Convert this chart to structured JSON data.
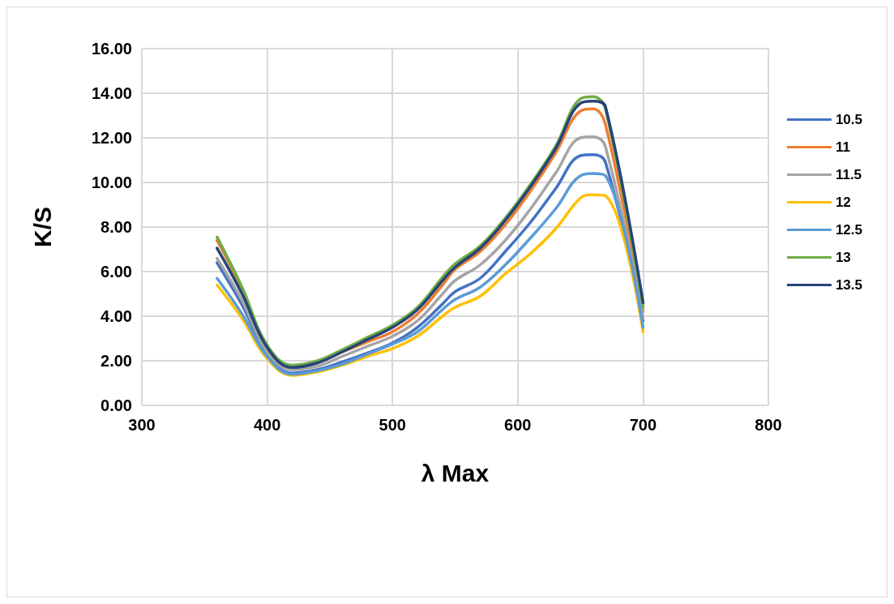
{
  "chart_data": {
    "type": "line",
    "xlabel": "λ Max",
    "ylabel": "K/S",
    "x": [
      360,
      380,
      400,
      420,
      440,
      460,
      480,
      500,
      520,
      540,
      550,
      570,
      590,
      610,
      630,
      650,
      660,
      670,
      700
    ],
    "series": [
      {
        "name": "10.5",
        "color": "#4472c4",
        "values": [
          6.4,
          4.5,
          2.3,
          1.45,
          1.6,
          1.95,
          2.35,
          2.8,
          3.5,
          4.55,
          5.1,
          5.7,
          6.9,
          8.2,
          9.7,
          11.2,
          11.25,
          10.9,
          3.8
        ]
      },
      {
        "name": "11",
        "color": "#ed7d31",
        "values": [
          7.4,
          5.2,
          2.6,
          1.75,
          1.95,
          2.4,
          2.85,
          3.3,
          4.1,
          5.4,
          6.1,
          6.9,
          8.1,
          9.6,
          11.3,
          13.2,
          13.3,
          12.6,
          4.2
        ]
      },
      {
        "name": "11.5",
        "color": "#a5a5a5",
        "values": [
          6.6,
          4.7,
          2.4,
          1.6,
          1.75,
          2.2,
          2.65,
          3.1,
          3.8,
          5.0,
          5.6,
          6.3,
          7.4,
          8.8,
          10.4,
          12.0,
          12.05,
          11.6,
          3.9
        ]
      },
      {
        "name": "12",
        "color": "#ffc000",
        "values": [
          5.4,
          3.9,
          2.1,
          1.35,
          1.5,
          1.8,
          2.2,
          2.55,
          3.1,
          4.0,
          4.4,
          4.9,
          5.9,
          6.8,
          7.9,
          9.3,
          9.45,
          9.4,
          3.3
        ]
      },
      {
        "name": "12.5",
        "color": "#5b9bd5",
        "values": [
          5.7,
          4.1,
          2.2,
          1.4,
          1.55,
          1.85,
          2.3,
          2.75,
          3.3,
          4.3,
          4.75,
          5.3,
          6.3,
          7.5,
          8.8,
          10.3,
          10.4,
          10.3,
          3.5
        ]
      },
      {
        "name": "13",
        "color": "#70ad47",
        "values": [
          7.55,
          5.3,
          2.7,
          1.8,
          2.0,
          2.5,
          3.05,
          3.6,
          4.4,
          5.75,
          6.35,
          7.15,
          8.4,
          9.9,
          11.6,
          13.75,
          13.85,
          13.3,
          4.4
        ]
      },
      {
        "name": "13.5",
        "color": "#264478",
        "values": [
          7.05,
          5.0,
          2.6,
          1.7,
          1.9,
          2.4,
          2.95,
          3.5,
          4.3,
          5.6,
          6.2,
          7.05,
          8.3,
          9.8,
          11.5,
          13.55,
          13.65,
          13.4,
          4.6
        ]
      }
    ],
    "xlim": [
      300,
      800
    ],
    "xticks": [
      300,
      400,
      500,
      600,
      700,
      800
    ],
    "ylim": [
      0,
      16
    ],
    "yticks": [
      {
        "value": 0,
        "label": "0.00"
      },
      {
        "value": 2,
        "label": "2.00"
      },
      {
        "value": 4,
        "label": "4.00"
      },
      {
        "value": 6,
        "label": "6.00"
      },
      {
        "value": 8,
        "label": "8.00"
      },
      {
        "value": 10,
        "label": "10.00"
      },
      {
        "value": 12,
        "label": "12.00"
      },
      {
        "value": 14,
        "label": "14.00"
      },
      {
        "value": 16,
        "label": "16.00"
      }
    ],
    "grid": true,
    "legend": "right",
    "marker": "none",
    "line_style": "solid"
  }
}
